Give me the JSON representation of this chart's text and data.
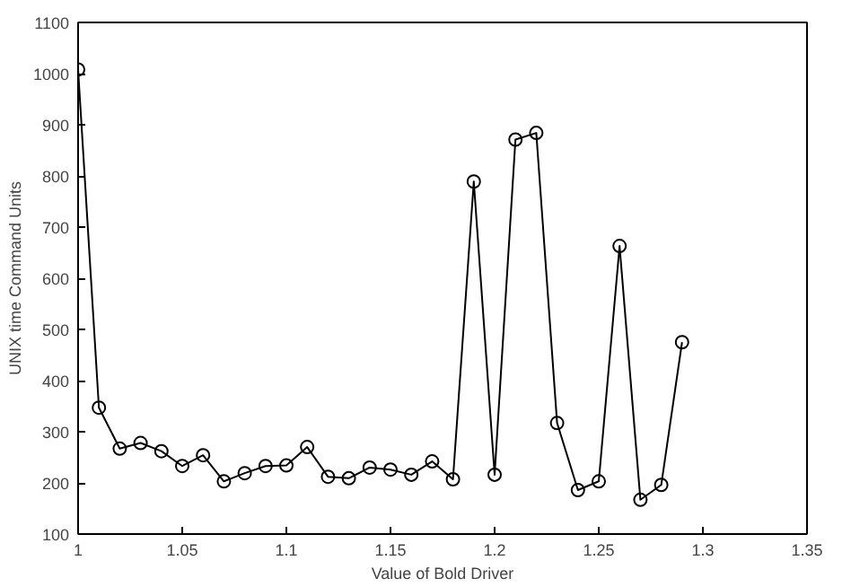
{
  "chart_data": {
    "type": "line",
    "xlabel": "Value of Bold Driver",
    "ylabel": "UNIX time Command Units",
    "x": [
      1.0,
      1.01,
      1.02,
      1.03,
      1.04,
      1.05,
      1.06,
      1.07,
      1.08,
      1.09,
      1.1,
      1.11,
      1.12,
      1.13,
      1.14,
      1.15,
      1.16,
      1.17,
      1.18,
      1.19,
      1.2,
      1.21,
      1.22,
      1.23,
      1.24,
      1.25,
      1.26,
      1.27,
      1.28,
      1.29
    ],
    "series": [
      {
        "color": "#000000",
        "values": [
          1008,
          347,
          267,
          278,
          262,
          233,
          254,
          203,
          219,
          233,
          234,
          270,
          212,
          209,
          230,
          226,
          216,
          242,
          207,
          789,
          216,
          871,
          884,
          317,
          186,
          203,
          663,
          167,
          196,
          475
        ]
      }
    ],
    "xlim": [
      1,
      1.35
    ],
    "xticks": [
      1,
      1.05,
      1.1,
      1.15,
      1.2,
      1.25,
      1.3,
      1.35
    ],
    "ylim": [
      100,
      1100
    ],
    "yticks": [
      100,
      200,
      300,
      400,
      500,
      600,
      700,
      800,
      900,
      1000,
      1100
    ],
    "grid": false,
    "marker": "circle",
    "line_style": "solid"
  }
}
